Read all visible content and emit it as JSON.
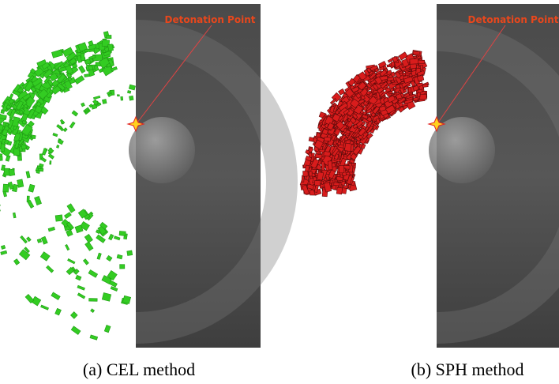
{
  "panels": [
    {
      "annotation": "Detonation Point",
      "caption": "(a) CEL method"
    },
    {
      "annotation": "Detonation Point",
      "caption": "(b) SPH method"
    }
  ]
}
